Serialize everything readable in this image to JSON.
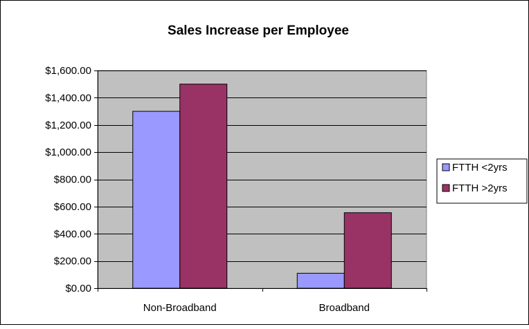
{
  "chart_data": {
    "type": "bar",
    "title": "Sales Increase per Employee",
    "xlabel": "",
    "ylabel": "",
    "categories": [
      "Non-Broadband",
      "Broadband"
    ],
    "series": [
      {
        "name": "FTTH <2yrs",
        "values": [
          1300,
          110
        ]
      },
      {
        "name": "FTTH >2yrs",
        "values": [
          1500,
          555
        ]
      }
    ],
    "ylim": [
      0,
      1600
    ],
    "y_ticks": [
      0,
      200,
      400,
      600,
      800,
      1000,
      1200,
      1400,
      1600
    ],
    "y_tick_labels": [
      "$0.00",
      "$200.00",
      "$400.00",
      "$600.00",
      "$800.00",
      "$1,000.00",
      "$1,200.00",
      "$1,400.00",
      "$1,600.00"
    ],
    "grid": true,
    "legend_position": "right",
    "colors": {
      "plot_background": "#c0c0c0",
      "series": [
        "#9999ff",
        "#993366"
      ],
      "gridline": "#000000"
    }
  }
}
